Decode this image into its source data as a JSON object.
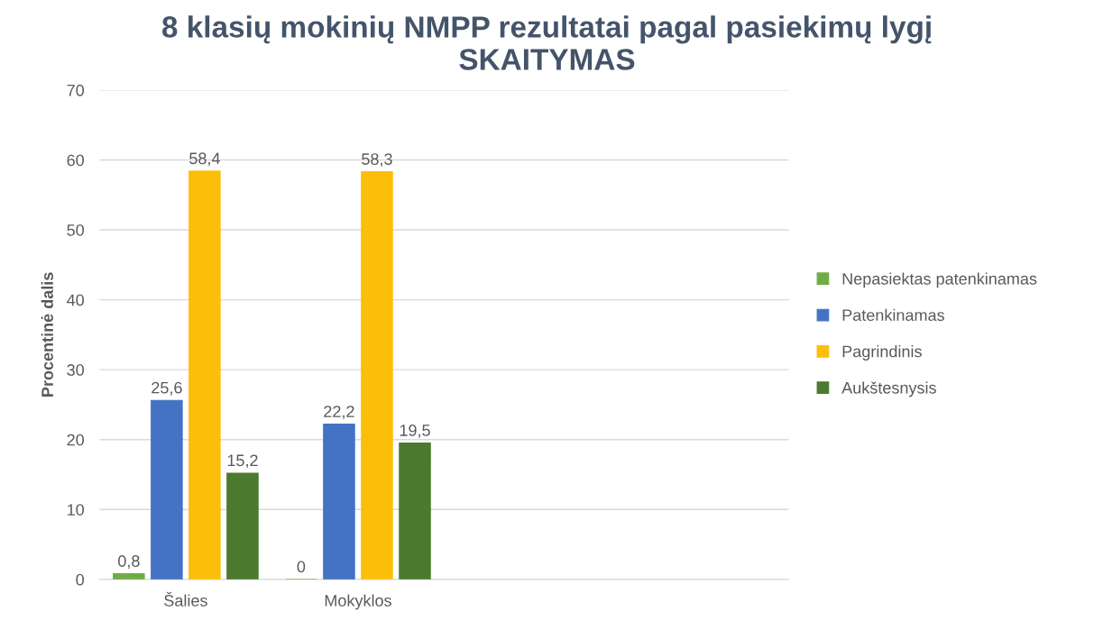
{
  "chart_data": {
    "type": "bar",
    "title": "8 klasių mokinių NMPP rezultatai pagal pasiekimų lygį\nSKAITYMAS",
    "ylabel": "Procentinė dalis",
    "categories": [
      "Šalies",
      "Mokyklos",
      null,
      null
    ],
    "series": [
      {
        "name": "Nepasiektas patenkinamas",
        "color": "#6fac46",
        "values": [
          0.8,
          0,
          null,
          null
        ],
        "value_labels": [
          "0,8",
          "0",
          null,
          null
        ]
      },
      {
        "name": "Patenkinamas",
        "color": "#4472c4",
        "values": [
          25.6,
          22.2,
          null,
          null
        ],
        "value_labels": [
          "25,6",
          "22,2",
          null,
          null
        ]
      },
      {
        "name": "Pagrindinis",
        "color": "#fbbf0a",
        "values": [
          58.4,
          58.3,
          null,
          null
        ],
        "value_labels": [
          "58,4",
          "58,3",
          null,
          null
        ]
      },
      {
        "name": "Aukštesnysis",
        "color": "#4b7a2f",
        "values": [
          15.2,
          19.5,
          null,
          null
        ],
        "value_labels": [
          "15,2",
          "19,5",
          null,
          null
        ]
      }
    ],
    "ylim": [
      0,
      70
    ],
    "yticks": [
      0,
      10,
      20,
      30,
      40,
      50,
      60,
      70
    ],
    "grid": "y",
    "legend": "right"
  }
}
